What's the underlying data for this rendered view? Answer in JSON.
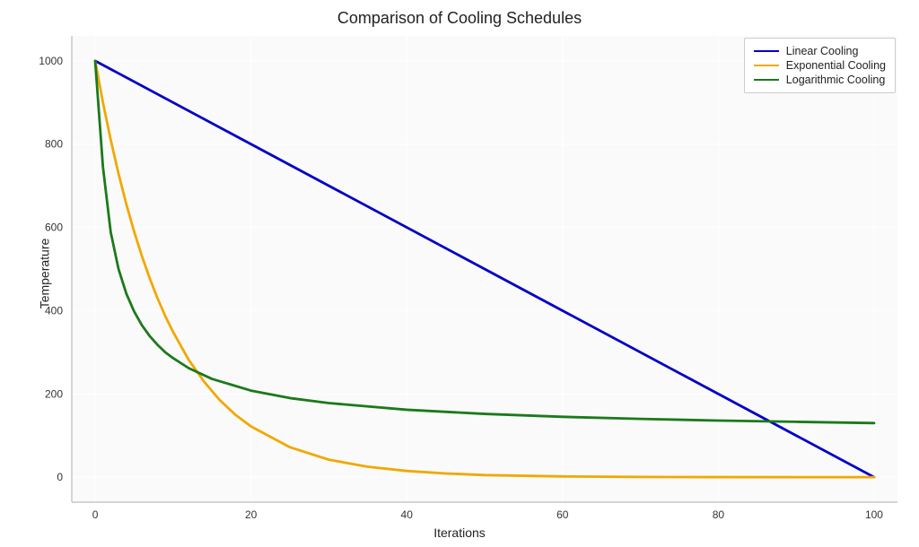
{
  "chart": {
    "type": "line",
    "title": "Comparison of Cooling Schedules",
    "title_fontsize": 18,
    "xlabel": "Iterations",
    "ylabel": "Temperature",
    "label_fontsize": 14,
    "tick_fontsize": 12,
    "background_color": "#ffffff",
    "plot_bg_color": "#f2f2f2",
    "plot_bg_opacity": 0.35,
    "grid_color": "#ffffff",
    "axis_color": "#adadad",
    "line_width": 2.8,
    "xlim": [
      -3,
      103
    ],
    "ylim": [
      -60,
      1060
    ],
    "xtick_step": 20,
    "ytick_step": 200,
    "xticks": [
      0,
      20,
      40,
      60,
      80,
      100
    ],
    "yticks": [
      0,
      200,
      400,
      600,
      800,
      1000
    ],
    "legend": {
      "position": "upper-right",
      "border_color": "#cccccc",
      "bg_color": "#ffffff",
      "items": [
        {
          "label": "Linear Cooling",
          "color": "#0000c8"
        },
        {
          "label": "Exponential Cooling",
          "color": "#f1a800"
        },
        {
          "label": "Logarithmic Cooling",
          "color": "#1a7a1a"
        }
      ]
    },
    "series": [
      {
        "name": "Linear Cooling",
        "color": "#0000c8",
        "x": [
          0,
          100
        ],
        "y": [
          1000,
          0
        ]
      },
      {
        "name": "Exponential Cooling",
        "color": "#f1a800",
        "x": [
          0,
          1,
          2,
          3,
          4,
          5,
          6,
          7,
          8,
          9,
          10,
          12,
          14,
          16,
          18,
          20,
          25,
          30,
          35,
          40,
          45,
          50,
          60,
          70,
          80,
          90,
          100
        ],
        "y": [
          1000,
          900,
          810,
          729,
          656,
          590,
          531,
          478,
          430,
          387,
          349,
          282,
          229,
          185,
          150,
          122,
          72,
          42,
          25,
          15,
          9,
          5,
          1.8,
          0.6,
          0.2,
          0.08,
          0.03
        ]
      },
      {
        "name": "Logarithmic Cooling",
        "color": "#1a7a1a",
        "x": [
          0,
          1,
          2,
          3,
          4,
          5,
          6,
          7,
          8,
          9,
          10,
          12,
          15,
          20,
          25,
          30,
          40,
          50,
          60,
          70,
          80,
          90,
          100
        ],
        "y": [
          1000,
          745,
          588,
          500,
          441,
          398,
          365,
          339,
          318,
          300,
          286,
          262,
          236,
          208,
          190,
          178,
          162,
          152,
          145,
          140,
          136,
          133,
          130
        ]
      }
    ]
  }
}
